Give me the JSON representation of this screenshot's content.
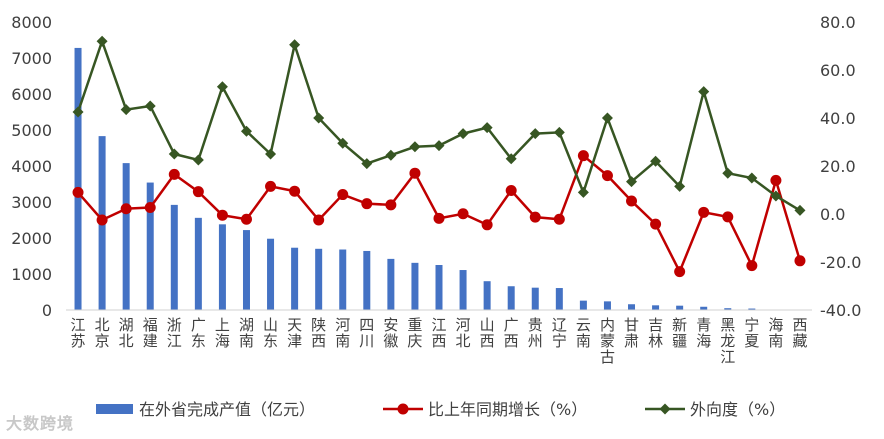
{
  "chart_data": {
    "type": "bar+line",
    "title": "",
    "categories": [
      "江苏",
      "北京",
      "湖北",
      "福建",
      "浙江",
      "广东",
      "上海",
      "湖南",
      "山东",
      "天津",
      "陕西",
      "河南",
      "四川",
      "安徽",
      "重庆",
      "江西",
      "河北",
      "山西",
      "广西",
      "贵州",
      "辽宁",
      "云南",
      "内蒙古",
      "甘肃",
      "吉林",
      "新疆",
      "青海",
      "黑龙江",
      "宁夏",
      "海南",
      "西藏"
    ],
    "y_left": {
      "min": 0,
      "max": 8000,
      "ticks": [
        "0",
        "1000",
        "2000",
        "3000",
        "4000",
        "5000",
        "6000",
        "7000",
        "8000"
      ]
    },
    "y_right": {
      "min": -40,
      "max": 80,
      "ticks": [
        "-40.0",
        "-20.0",
        "0.0",
        "20.0",
        "40.0",
        "60.0",
        "80.0"
      ]
    },
    "series": [
      {
        "name": "在外省完成产值（亿元）",
        "type": "bar",
        "axis": "left",
        "color": "#4472C4",
        "values": [
          7280,
          4830,
          4080,
          3540,
          2920,
          2560,
          2380,
          2220,
          1980,
          1730,
          1700,
          1680,
          1640,
          1420,
          1310,
          1250,
          1110,
          800,
          660,
          620,
          610,
          260,
          240,
          160,
          130,
          120,
          90,
          50,
          40,
          10,
          5
        ]
      },
      {
        "name": "比上年同期增长（%）",
        "type": "line",
        "axis": "right",
        "color": "#C00000",
        "values": [
          9.0,
          -2.5,
          2.2,
          2.7,
          16.5,
          9.3,
          -0.5,
          -2.2,
          11.5,
          9.5,
          -2.5,
          8.1,
          4.3,
          3.8,
          17.0,
          -1.8,
          0.1,
          -4.5,
          9.8,
          -1.3,
          -2.2,
          24.3,
          16.0,
          5.4,
          -4.2,
          -24.0,
          0.7,
          -1.2,
          -21.5,
          14.0,
          -19.5
        ]
      },
      {
        "name": "外向度（%）",
        "type": "line",
        "axis": "right",
        "color": "#375623",
        "values": [
          42.5,
          72.0,
          43.5,
          45.0,
          25.0,
          22.5,
          53.0,
          34.5,
          25.0,
          70.5,
          40.0,
          29.5,
          21.0,
          24.5,
          28.0,
          28.5,
          33.5,
          36.0,
          23.0,
          33.5,
          34.0,
          9.0,
          40.0,
          13.5,
          22.0,
          11.5,
          51.0,
          17.0,
          15.0,
          7.5,
          1.5
        ]
      }
    ],
    "legend_position": "bottom",
    "grid": false
  },
  "watermark": "大数跨境"
}
